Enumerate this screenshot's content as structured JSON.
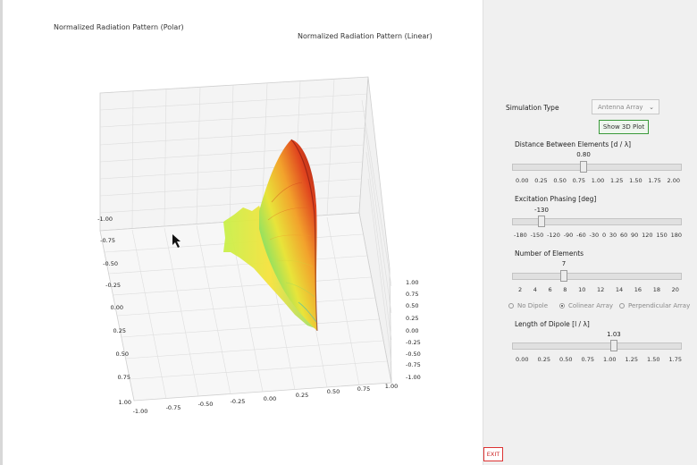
{
  "plot": {
    "title_polar": "Normalized Radiation Pattern (Polar)",
    "title_linear": "Normalized Radiation Pattern (Linear)",
    "y_ticks": [
      "-1.00",
      "-0.75",
      "-0.50",
      "-0.25",
      "0.00",
      "0.25",
      "0.50",
      "0.75",
      "1.00"
    ],
    "x_ticks": [
      "-1.00",
      "-0.75",
      "-0.50",
      "-0.25",
      "0.00",
      "0.25",
      "0.50",
      "0.75",
      "1.00"
    ],
    "z_ticks": [
      "1.00",
      "0.75",
      "0.50",
      "0.25",
      "0.00",
      "-0.25",
      "-0.50",
      "-0.75",
      "-1.00"
    ]
  },
  "controls": {
    "simulation_type_label": "Simulation Type",
    "simulation_type_value": "Antenna Array",
    "show3d_label": "Show 3D Plot",
    "distance": {
      "label": "Distance Between Elements [d / λ]",
      "value_text": "0.80",
      "value": 0.8,
      "min": 0,
      "max": 2,
      "ticks": [
        "0.00",
        "0.25",
        "0.50",
        "0.75",
        "1.00",
        "1.25",
        "1.50",
        "1.75",
        "2.00"
      ]
    },
    "phasing": {
      "label": "Excitation Phasing [deg]",
      "value_text": "-130",
      "value": -130,
      "min": -180,
      "max": 180,
      "ticks": [
        "-180",
        "-150",
        "-120",
        "-90",
        "-60",
        "-30",
        "0",
        "30",
        "60",
        "90",
        "120",
        "150",
        "180"
      ]
    },
    "elements": {
      "label": "Number of Elements",
      "value_text": "7",
      "value": 7,
      "min": 2,
      "max": 20,
      "ticks": [
        "2",
        "4",
        "6",
        "8",
        "10",
        "12",
        "14",
        "16",
        "18",
        "20"
      ]
    },
    "radios": [
      {
        "label": "No Dipole",
        "checked": false
      },
      {
        "label": "Colinear Array",
        "checked": true
      },
      {
        "label": "Perpendicular Array",
        "checked": false
      }
    ],
    "dipole": {
      "label": "Length of Dipole [l / λ]",
      "value_text": "1.03",
      "value": 1.03,
      "min": 0,
      "max": 1.75,
      "ticks": [
        "0.00",
        "0.25",
        "0.50",
        "0.75",
        "1.00",
        "1.25",
        "1.50",
        "1.75"
      ]
    },
    "exit_label": "EXIT"
  }
}
